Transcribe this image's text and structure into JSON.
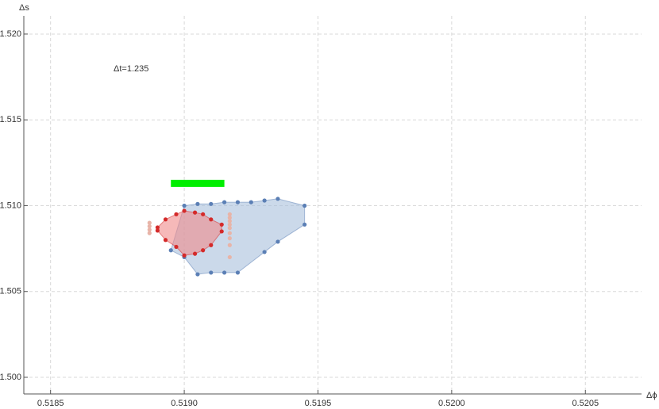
{
  "chart_data": {
    "type": "scatter",
    "x_label": "Δϕ",
    "y_label": "Δs",
    "annotation": "Δt=1.235",
    "xlim": [
      0.5184,
      0.52071
    ],
    "ylim": [
      1.49903,
      1.52106
    ],
    "xticks": [
      {
        "value": 0.5185,
        "label": "0.5185"
      },
      {
        "value": 0.519,
        "label": "0.5190"
      },
      {
        "value": 0.5195,
        "label": "0.5195"
      },
      {
        "value": 0.52,
        "label": "0.5200"
      },
      {
        "value": 0.5205,
        "label": "0.5205"
      }
    ],
    "yticks": [
      {
        "value": 1.5,
        "label": "1.500"
      },
      {
        "value": 1.505,
        "label": "1.505"
      },
      {
        "value": 1.51,
        "label": "1.510"
      },
      {
        "value": 1.515,
        "label": "1.515"
      },
      {
        "value": 1.52,
        "label": "1.520"
      }
    ],
    "grid": true,
    "series": [
      {
        "shape": "polygon",
        "color": "#5b7fb5",
        "fill": "#a9bfdc",
        "x": [
          0.519,
          0.51905,
          0.5191,
          0.51915,
          0.5192,
          0.51925,
          0.5193,
          0.51935,
          0.51945,
          0.51945,
          0.51935,
          0.5193,
          0.5192,
          0.51915,
          0.5191,
          0.51905,
          0.519,
          0.51895
        ],
        "values": [
          1.51,
          1.5101,
          1.5101,
          1.5102,
          1.5102,
          1.5102,
          1.5103,
          1.5104,
          1.51,
          1.5089,
          1.5079,
          1.5073,
          1.5061,
          1.5061,
          1.5061,
          1.506,
          1.507,
          1.5074
        ]
      },
      {
        "shape": "points",
        "color": "#e8b4a8",
        "x": [
          0.51887,
          0.51887,
          0.51887,
          0.51887,
          0.51917,
          0.51917,
          0.51917,
          0.51917,
          0.51917,
          0.51917,
          0.51917,
          0.51917,
          0.51917
        ],
        "values": [
          1.509,
          1.5088,
          1.5086,
          1.5084,
          1.5095,
          1.5093,
          1.5091,
          1.5089,
          1.5087,
          1.5084,
          1.5081,
          1.5077,
          1.507
        ]
      },
      {
        "shape": "polygon",
        "color": "#d42a2a",
        "fill": "#f08a8a",
        "x": [
          0.5189,
          0.5189,
          0.51893,
          0.51897,
          0.519,
          0.51904,
          0.51907,
          0.5191,
          0.51914,
          0.51914,
          0.5191,
          0.51907,
          0.51904,
          0.519,
          0.51897,
          0.51893
        ],
        "values": [
          1.50855,
          1.50873,
          1.5092,
          1.5095,
          1.5097,
          1.5096,
          1.5095,
          1.5092,
          1.5089,
          1.5085,
          1.5077,
          1.5074,
          1.5072,
          1.5071,
          1.5076,
          1.508
        ]
      },
      {
        "shape": "bar",
        "color": "#00ee00",
        "x": [
          0.51895,
          0.51915
        ],
        "values": [
          1.5113,
          1.5113
        ]
      }
    ]
  }
}
